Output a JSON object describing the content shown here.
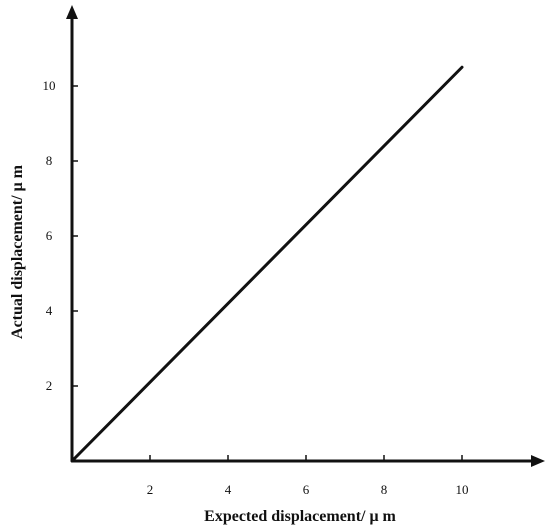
{
  "chart_data": {
    "type": "line",
    "title": "",
    "xlabel": "Expected displacement/ μ m",
    "ylabel": "Actual displacement/ μ m",
    "xlim": [
      0,
      12
    ],
    "ylim": [
      0,
      12
    ],
    "xticks": [
      2,
      4,
      6,
      8,
      10
    ],
    "yticks": [
      2,
      4,
      6,
      8,
      10
    ],
    "grid": false,
    "series": [
      {
        "x": [
          0,
          10
        ],
        "y": [
          0,
          10.5
        ]
      }
    ],
    "colors": {
      "axis": "#111111",
      "line": "#111111"
    }
  }
}
